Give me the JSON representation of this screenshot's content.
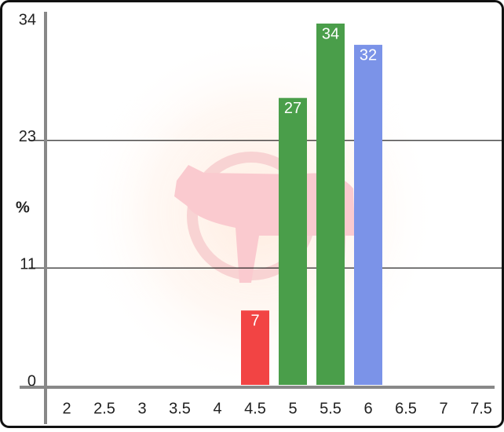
{
  "chart_data": {
    "type": "bar",
    "y_label": "%",
    "categories": [
      2,
      2.5,
      3,
      3.5,
      4,
      4.5,
      5,
      5.5,
      6,
      6.5,
      7,
      7.5
    ],
    "values": [
      null,
      null,
      null,
      null,
      null,
      7,
      27,
      34,
      32,
      null,
      null,
      null
    ],
    "colors": [
      null,
      null,
      null,
      null,
      null,
      "#f24444",
      "#4a9e4a",
      "#4a9e4a",
      "#7b93e8",
      null,
      null,
      null
    ],
    "ylim": [
      0,
      34
    ],
    "yticks": [
      0,
      11,
      23,
      34
    ],
    "grid": true
  }
}
